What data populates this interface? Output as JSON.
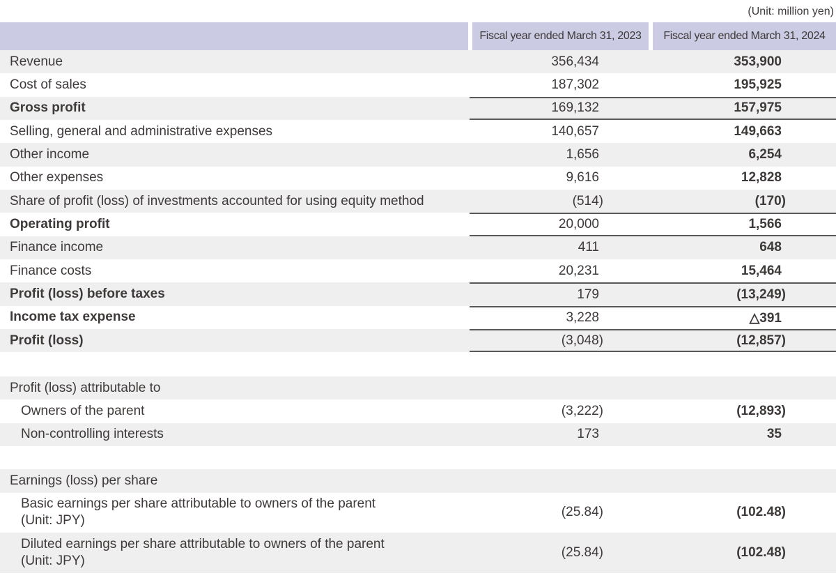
{
  "unit_note": "(Unit: million yen)",
  "table": {
    "columns": [
      "Fiscal year ended March 31, 2023",
      "Fiscal year ended March 31, 2024"
    ],
    "rows": [
      {
        "label": "Revenue",
        "fy2023": "356,434",
        "fy2024": "353,900"
      },
      {
        "label": "Cost of sales",
        "fy2023": "187,302",
        "fy2024": "195,925"
      },
      {
        "label": "Gross profit",
        "fy2023": "169,132",
        "fy2024": "157,975"
      },
      {
        "label": "Selling, general and administrative expenses",
        "fy2023": "140,657",
        "fy2024": "149,663"
      },
      {
        "label": "Other income",
        "fy2023": "1,656",
        "fy2024": "6,254"
      },
      {
        "label": "Other expenses",
        "fy2023": "9,616",
        "fy2024": "12,828"
      },
      {
        "label": "Share of profit (loss) of investments accounted for using equity method",
        "fy2023": "(514)",
        "fy2024": "(170)"
      },
      {
        "label": "Operating profit",
        "fy2023": "20,000",
        "fy2024": "1,566"
      },
      {
        "label": "Finance income",
        "fy2023": "411",
        "fy2024": "648"
      },
      {
        "label": "Finance costs",
        "fy2023": "20,231",
        "fy2024": "15,464"
      },
      {
        "label": "Profit (loss) before taxes",
        "fy2023": "179",
        "fy2024": "(13,249)"
      },
      {
        "label": "Income tax expense",
        "fy2023": "3,228",
        "fy2024": "△391"
      },
      {
        "label": "Profit (loss)",
        "fy2023": "(3,048)",
        "fy2024": "(12,857)"
      }
    ],
    "attribution": {
      "heading": "Profit (loss) attributable to",
      "rows": [
        {
          "label": "Owners of the parent",
          "fy2023": "(3,222)",
          "fy2024": "(12,893)"
        },
        {
          "label": "Non-controlling interests",
          "fy2023": "173",
          "fy2024": "35"
        }
      ]
    },
    "eps": {
      "heading": "Earnings (loss) per share",
      "rows": [
        {
          "label": "Basic earnings per share attributable to owners of the parent",
          "label2": "(Unit: JPY)",
          "fy2023": "(25.84)",
          "fy2024": "(102.48)"
        },
        {
          "label": "Diluted earnings per share attributable to owners of the parent",
          "label2": "(Unit: JPY)",
          "fy2023": "(25.84)",
          "fy2024": "(102.48)"
        }
      ]
    }
  },
  "colors": {
    "header_bg": "#cbcbe4",
    "alt_row_bg": "#efefef",
    "rule": "#595757",
    "text": "#3e3a39"
  }
}
